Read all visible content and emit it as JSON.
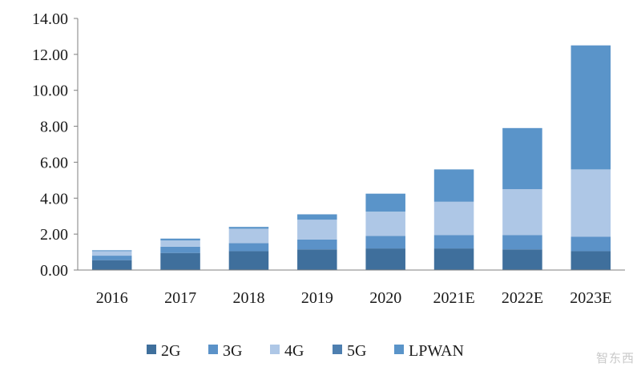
{
  "chart_data": {
    "type": "bar",
    "stacked": true,
    "title": "",
    "xlabel": "",
    "ylabel": "",
    "categories": [
      "2016",
      "2017",
      "2018",
      "2019",
      "2020",
      "2021E",
      "2022E",
      "2023E"
    ],
    "ylim": [
      0,
      14
    ],
    "yticks": [
      "0.00",
      "2.00",
      "4.00",
      "6.00",
      "8.00",
      "10.00",
      "12.00",
      "14.00"
    ],
    "ytick_values": [
      0,
      2,
      4,
      6,
      8,
      10,
      12,
      14
    ],
    "grid": false,
    "legend_position": "bottom",
    "series": [
      {
        "name": "2G",
        "color": "#3f6f9c",
        "values": [
          0.55,
          0.95,
          1.05,
          1.15,
          1.2,
          1.2,
          1.15,
          1.05
        ]
      },
      {
        "name": "3G",
        "color": "#5b92c8",
        "values": [
          0.25,
          0.35,
          0.45,
          0.55,
          0.7,
          0.75,
          0.8,
          0.8
        ]
      },
      {
        "name": "4G",
        "color": "#aec7e6",
        "values": [
          0.25,
          0.35,
          0.8,
          1.1,
          1.35,
          1.85,
          2.55,
          3.75
        ]
      },
      {
        "name": "5G",
        "color": "#4e7fb0",
        "values": [
          0,
          0,
          0,
          0,
          0,
          0,
          0,
          0
        ]
      },
      {
        "name": "LPWAN",
        "color": "#5a94c9",
        "values": [
          0.05,
          0.1,
          0.1,
          0.3,
          1.0,
          1.8,
          3.4,
          6.9
        ]
      }
    ]
  },
  "watermark": "智东西"
}
